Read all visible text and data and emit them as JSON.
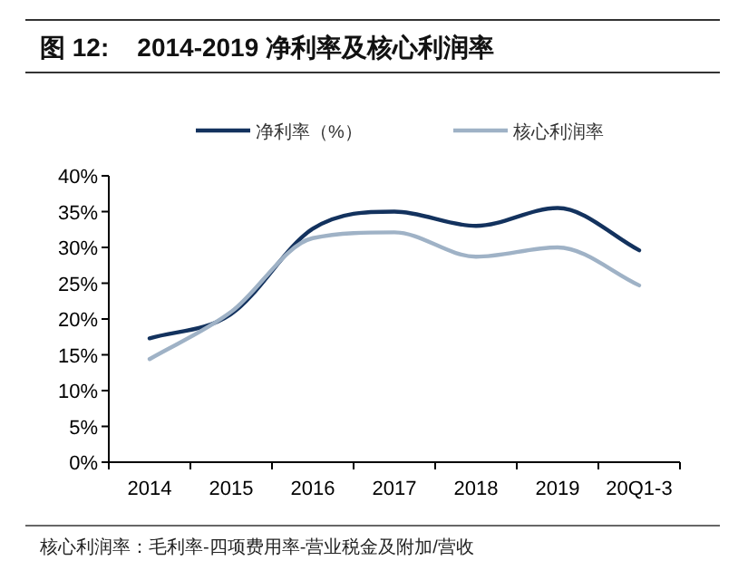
{
  "chart_data": {
    "type": "line",
    "title": "图 12:    2014-2019 净利率及核心利润率",
    "categories": [
      "2014",
      "2015",
      "2016",
      "2017",
      "2018",
      "2019",
      "20Q1-3"
    ],
    "series": [
      {
        "name": "净利率（%）",
        "color": "#13325e",
        "values": [
          17.3,
          20.7,
          32.6,
          35.0,
          33.0,
          35.5,
          29.6
        ]
      },
      {
        "name": "核心利润率",
        "color": "#9fb2c6",
        "values": [
          14.4,
          21.0,
          31.3,
          32.1,
          28.7,
          30.0,
          24.7
        ]
      }
    ],
    "ylim": [
      0,
      40
    ],
    "yticks": [
      {
        "value": 0,
        "label": "0%"
      },
      {
        "value": 5,
        "label": "5%"
      },
      {
        "value": 10,
        "label": "10%"
      },
      {
        "value": 15,
        "label": "15%"
      },
      {
        "value": 20,
        "label": "20%"
      },
      {
        "value": 25,
        "label": "25%"
      },
      {
        "value": 30,
        "label": "30%"
      },
      {
        "value": 35,
        "label": "35%"
      },
      {
        "value": 40,
        "label": "40%"
      }
    ],
    "legend": "top",
    "grid": false,
    "marker": "none",
    "line_style": "solid",
    "annotations": [
      "核心利润率：毛利率-四项费用率-营业税金及附加/营收"
    ]
  }
}
